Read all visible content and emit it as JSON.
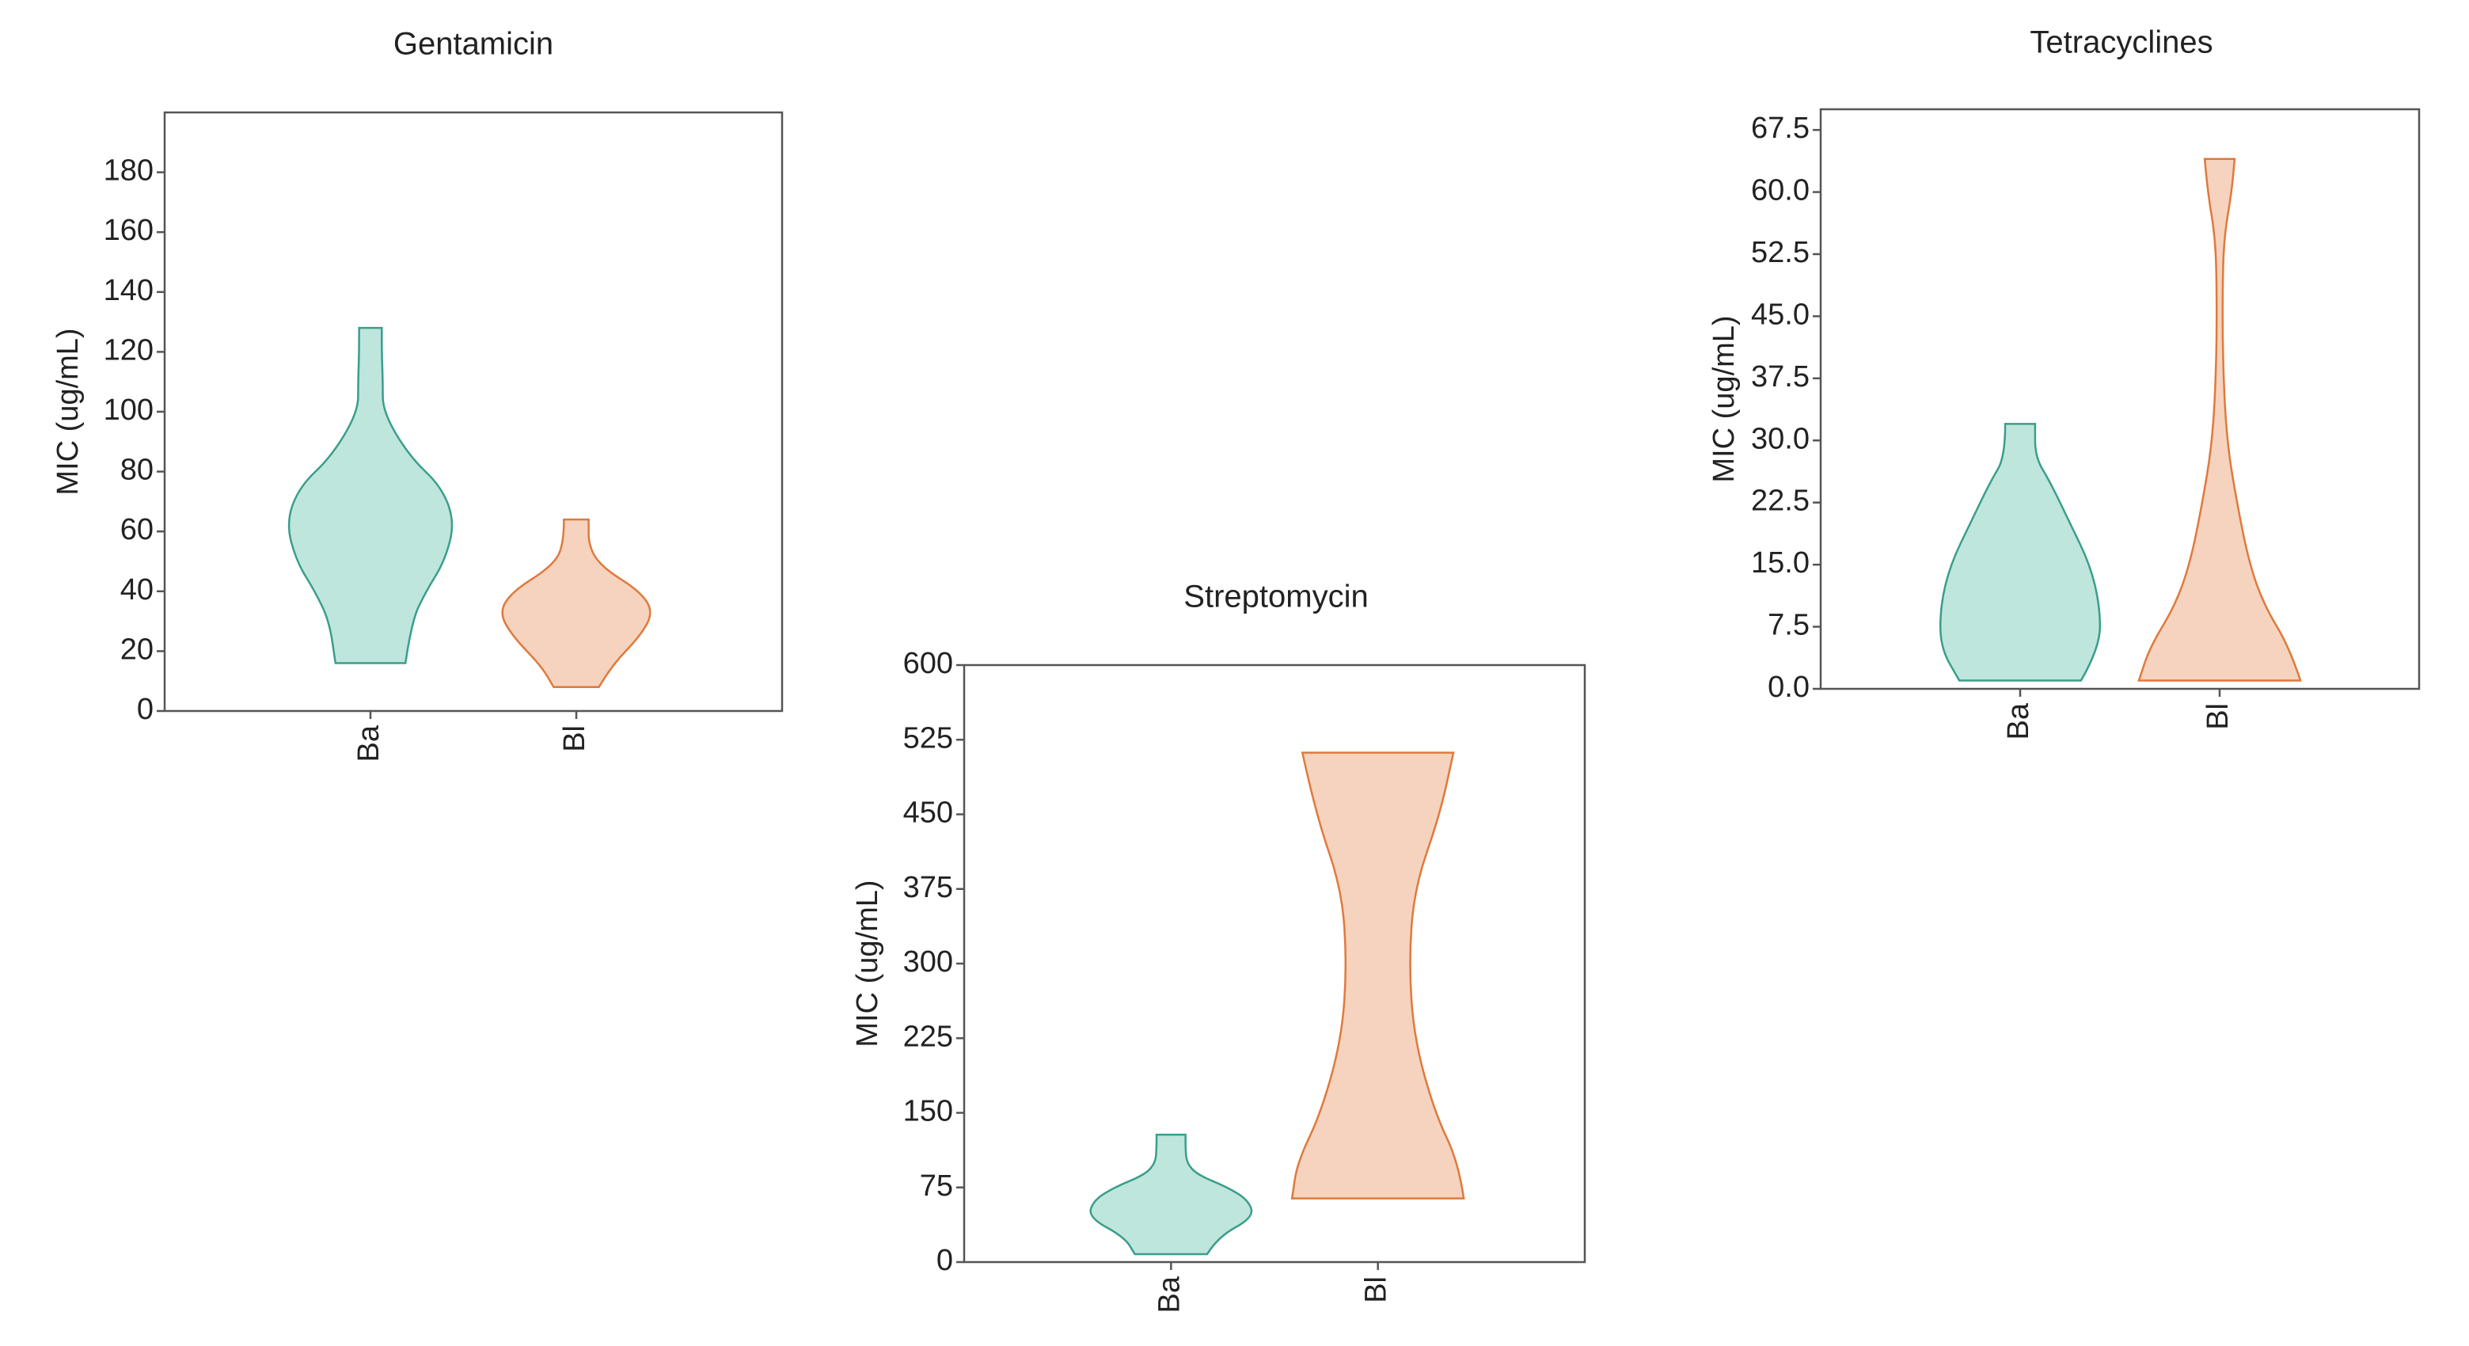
{
  "chart_data": [
    {
      "type": "violin",
      "title": "Gentamicin",
      "ylabel": "MIC (ug/mL)",
      "categories": [
        "Ba",
        "Bl"
      ],
      "violins": [
        {
          "color": "#bfe6dc",
          "edge": "#3a9e8b",
          "y": [
            16,
            30,
            40,
            50,
            63,
            75,
            85,
            100,
            110,
            120,
            128
          ],
          "width": [
            0.34,
            0.4,
            0.54,
            0.72,
            0.82,
            0.69,
            0.38,
            0.12,
            0.12,
            0.11,
            0.11
          ]
        },
        {
          "color": "#f6d3be",
          "edge": "#df7a3c",
          "y": [
            8,
            15,
            25,
            33,
            40,
            48,
            55,
            64
          ],
          "width": [
            0.22,
            0.34,
            0.62,
            0.75,
            0.62,
            0.25,
            0.12,
            0.12
          ]
        }
      ],
      "ylim": [
        0,
        200
      ],
      "yticks": [
        0,
        20,
        40,
        60,
        80,
        100,
        120,
        140,
        160,
        180
      ]
    },
    {
      "type": "violin",
      "title": "Streptomycin",
      "ylabel": "MIC (ug/mL)",
      "categories": [
        "Ba",
        "Bl"
      ],
      "violins": [
        {
          "color": "#bfe6dc",
          "edge": "#3a9e8b",
          "y": [
            8,
            25,
            45,
            62,
            75,
            88,
            100,
            115,
            128
          ],
          "width": [
            0.35,
            0.45,
            0.8,
            0.75,
            0.55,
            0.25,
            0.15,
            0.14,
            0.14
          ]
        },
        {
          "color": "#f6d3be",
          "edge": "#df7a3c",
          "y": [
            64,
            100,
            150,
            225,
            300,
            375,
            450,
            512
          ],
          "width": [
            0.83,
            0.78,
            0.55,
            0.35,
            0.3,
            0.35,
            0.6,
            0.73
          ]
        }
      ],
      "ylim": [
        0,
        600
      ],
      "yticks": [
        0,
        75,
        150,
        225,
        300,
        375,
        450,
        525,
        600
      ]
    },
    {
      "type": "violin",
      "title": "Tetracyclines",
      "ylabel": "MIC (ug/mL)",
      "categories": [
        "Ba",
        "Bl"
      ],
      "violins": [
        {
          "color": "#bfe6dc",
          "edge": "#3a9e8b",
          "y": [
            1,
            5,
            10,
            15,
            20,
            25,
            28,
            32
          ],
          "width": [
            0.61,
            0.8,
            0.8,
            0.7,
            0.5,
            0.3,
            0.15,
            0.15
          ]
        },
        {
          "color": "#f6d3be",
          "edge": "#df7a3c",
          "y": [
            1,
            5,
            10,
            15,
            22,
            30,
            40,
            50,
            55,
            60,
            64
          ],
          "width": [
            0.81,
            0.7,
            0.45,
            0.3,
            0.18,
            0.07,
            0.03,
            0.03,
            0.05,
            0.12,
            0.15
          ]
        }
      ],
      "ylim": [
        0,
        70
      ],
      "yticks": [
        {
          "value": 0,
          "label": "0.0"
        },
        7.5,
        {
          "value": 15,
          "label": "15.0"
        },
        22.5,
        {
          "value": 30,
          "label": "30.0"
        },
        37.5,
        {
          "value": 45,
          "label": "45.0"
        },
        52.5,
        {
          "value": 60,
          "label": "60.0"
        },
        67.5
      ]
    }
  ]
}
